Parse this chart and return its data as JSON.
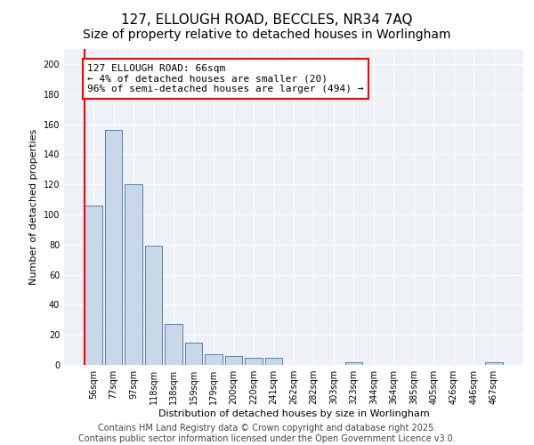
{
  "title_line1": "127, ELLOUGH ROAD, BECCLES, NR34 7AQ",
  "title_line2": "Size of property relative to detached houses in Worlingham",
  "xlabel": "Distribution of detached houses by size in Worlingham",
  "ylabel": "Number of detached properties",
  "categories": [
    "56sqm",
    "77sqm",
    "97sqm",
    "118sqm",
    "138sqm",
    "159sqm",
    "179sqm",
    "200sqm",
    "220sqm",
    "241sqm",
    "262sqm",
    "282sqm",
    "303sqm",
    "323sqm",
    "344sqm",
    "364sqm",
    "385sqm",
    "405sqm",
    "426sqm",
    "446sqm",
    "467sqm"
  ],
  "values": [
    106,
    156,
    120,
    79,
    27,
    15,
    7,
    6,
    5,
    5,
    0,
    0,
    0,
    2,
    0,
    0,
    0,
    0,
    0,
    0,
    2
  ],
  "bar_color": "#c8d8e8",
  "bar_edge_color": "#5080b0",
  "annotation_line1": "127 ELLOUGH ROAD: 66sqm",
  "annotation_line2": "← 4% of detached houses are smaller (20)",
  "annotation_line3": "96% of semi-detached houses are larger (494) →",
  "annotation_box_color": "white",
  "annotation_box_edge_color": "red",
  "red_line_color": "red",
  "ylim": [
    0,
    210
  ],
  "yticks": [
    0,
    20,
    40,
    60,
    80,
    100,
    120,
    140,
    160,
    180,
    200
  ],
  "footer_line1": "Contains HM Land Registry data © Crown copyright and database right 2025.",
  "footer_line2": "Contains public sector information licensed under the Open Government Licence v3.0.",
  "background_color": "#eef2f7",
  "grid_color": "white",
  "title_fontsize": 11,
  "subtitle_fontsize": 10,
  "axis_label_fontsize": 8,
  "tick_fontsize": 7,
  "footer_fontsize": 7,
  "annotation_fontsize": 8
}
